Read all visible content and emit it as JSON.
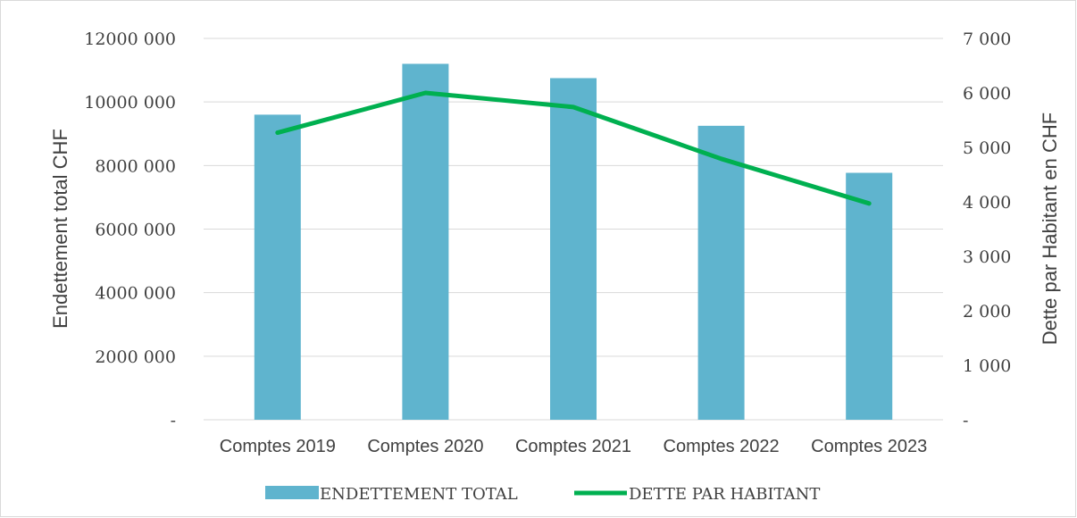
{
  "chart_data": {
    "type": "bar+line",
    "categories": [
      "Comptes 2019",
      "Comptes 2020",
      "Comptes 2021",
      "Comptes 2022",
      "Comptes 2023"
    ],
    "series": [
      {
        "name": "ENDETTEMENT TOTAL",
        "kind": "bar",
        "axis": "left",
        "color": "#5fb4ce",
        "values": [
          9600000,
          11200000,
          10750000,
          9250000,
          7770000
        ]
      },
      {
        "name": "DETTE PAR HABITANT",
        "kind": "line",
        "axis": "right",
        "color": "#00b050",
        "values": [
          5270,
          6000,
          5740,
          4790,
          3970
        ]
      }
    ],
    "ylabel_left": "Endettement total CHF",
    "ylabel_right": "Dette par Habitant en CHF",
    "ylim_left": [
      0,
      12000000
    ],
    "ylim_right": [
      0,
      7000
    ],
    "yticks_left": [
      "-",
      "2000 000",
      "4000 000",
      "6000 000",
      "8000 000",
      "10000 000",
      "12000 000"
    ],
    "yticks_right": [
      "-",
      "1 000",
      "2 000",
      "3 000",
      "4 000",
      "5 000",
      "6 000",
      "7 000"
    ],
    "grid": true,
    "legend_position": "bottom"
  }
}
